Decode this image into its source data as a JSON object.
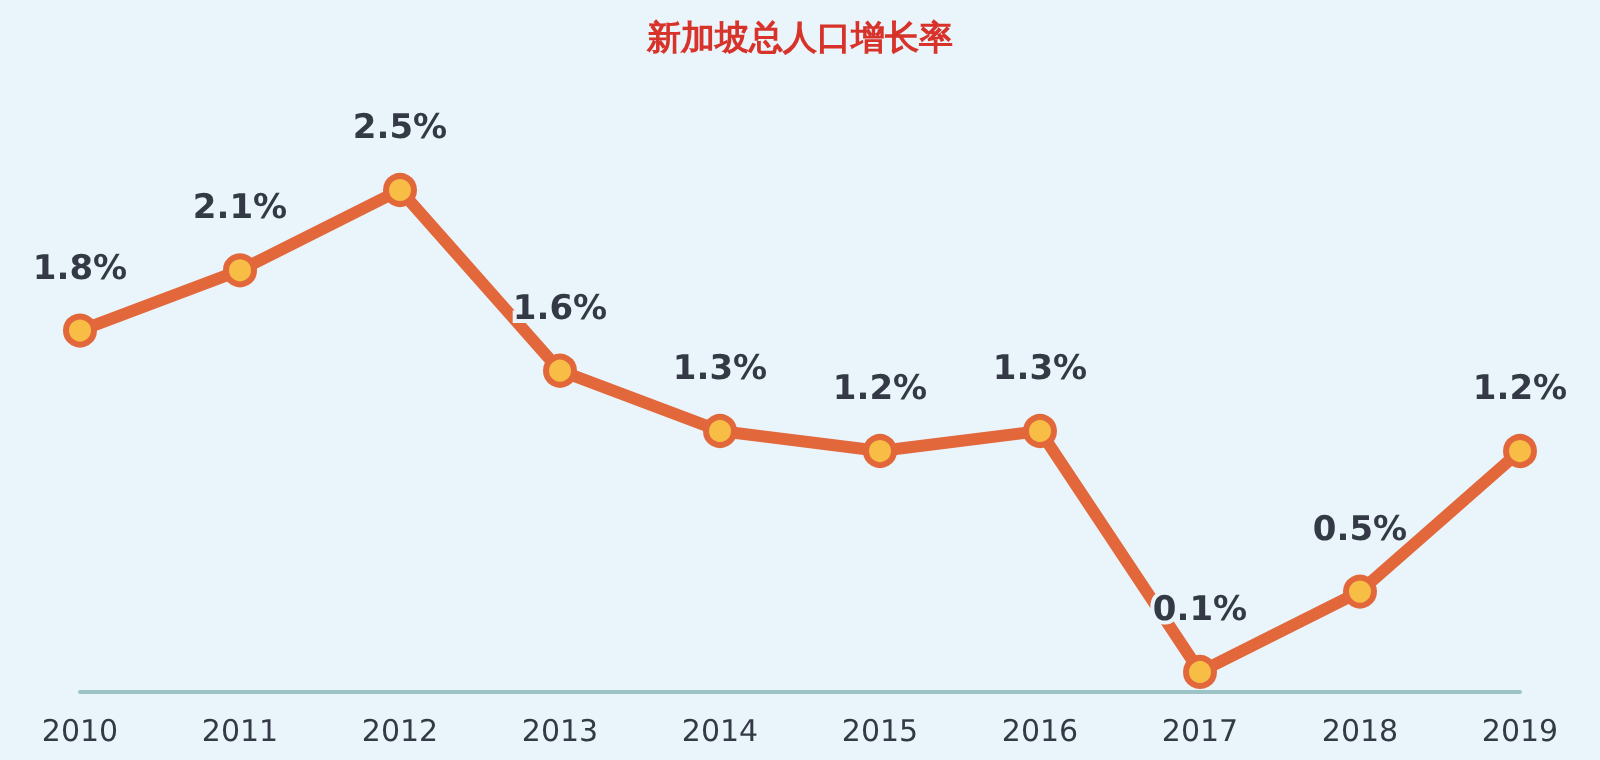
{
  "chart_data": {
    "type": "line",
    "title": "新加坡总人口增长率",
    "categories": [
      "2010",
      "2011",
      "2012",
      "2013",
      "2014",
      "2015",
      "2016",
      "2017",
      "2018",
      "2019"
    ],
    "series": [
      {
        "color": "#e2683c",
        "values": [
          1.8,
          2.1,
          2.5,
          1.6,
          1.3,
          1.2,
          1.3,
          0.1,
          0.5,
          1.2
        ],
        "value_labels": [
          "1.8%",
          "2.1%",
          "2.5%",
          "1.6%",
          "1.3%",
          "1.2%",
          "1.3%",
          "0.1%",
          "0.5%",
          "1.2%"
        ]
      }
    ],
    "marker": "circle"
  }
}
